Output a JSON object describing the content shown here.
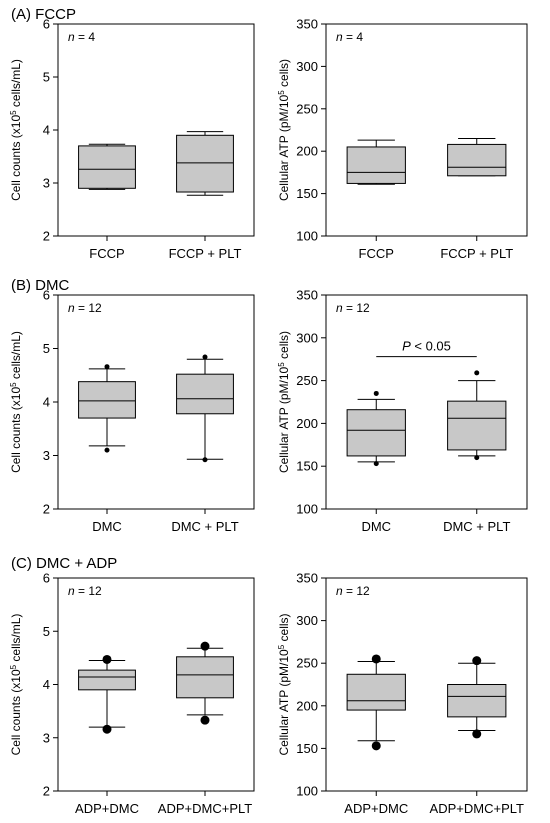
{
  "colors": {
    "box_fill": "#c8c8c8",
    "axis": "#000000",
    "text": "#000000",
    "background": "#ffffff"
  },
  "panel_titles": [
    "(A) FCCP",
    "(B) DMC",
    "(C) DMC + ADP"
  ],
  "chart_data": [
    {
      "type": "box",
      "panel": "A",
      "ylabel": "Cell counts (x10^5 cells/mL)",
      "ylabel_base": "Cell counts (x10",
      "ylabel_sup": "5",
      "ylabel_tail": " cells/mL)",
      "ylim": [
        2,
        6
      ],
      "yticks": [
        "2",
        "3",
        "4",
        "5",
        "6"
      ],
      "n_italic": "n",
      "n_text": " = 4",
      "categories": [
        "FCCP",
        "FCCP + PLT"
      ],
      "boxes": [
        {
          "min": 2.88,
          "q1": 2.9,
          "median": 3.26,
          "q3": 3.7,
          "max": 3.73
        },
        {
          "min": 2.77,
          "q1": 2.83,
          "median": 3.38,
          "q3": 3.9,
          "max": 3.97
        }
      ]
    },
    {
      "type": "box",
      "panel": "A",
      "ylabel": "Cellular ATP (pM/10^5 cells)",
      "ylabel_base": "Cellular ATP (pM/10",
      "ylabel_sup": "5",
      "ylabel_tail": " cells)",
      "ylim": [
        100,
        350
      ],
      "yticks": [
        "100",
        "150",
        "200",
        "250",
        "300",
        "350"
      ],
      "n_italic": "n",
      "n_text": " = 4",
      "categories": [
        "FCCP",
        "FCCP + PLT"
      ],
      "boxes": [
        {
          "min": 161,
          "q1": 162,
          "median": 175,
          "q3": 205,
          "max": 213
        },
        {
          "min": 171,
          "q1": 171,
          "median": 181,
          "q3": 208,
          "max": 215
        }
      ]
    },
    {
      "type": "box",
      "panel": "B",
      "ylabel": "Cell counts (x10^5 cells/mL)",
      "ylabel_base": "Cell counts (x10",
      "ylabel_sup": "5",
      "ylabel_tail": " cells/mL)",
      "ylim": [
        2,
        6
      ],
      "yticks": [
        "2",
        "3",
        "4",
        "5",
        "6"
      ],
      "n_italic": "n",
      "n_text": " = 12",
      "categories": [
        "DMC",
        "DMC + PLT"
      ],
      "boxes": [
        {
          "min": 3.18,
          "q1": 3.7,
          "median": 4.02,
          "q3": 4.38,
          "max": 4.62,
          "outliers": [
            4.66,
            3.1
          ],
          "outlier_size": 2.5
        },
        {
          "min": 2.93,
          "q1": 3.78,
          "median": 4.06,
          "q3": 4.52,
          "max": 4.8,
          "outliers": [
            4.84,
            2.92
          ],
          "outlier_size": 2.5
        }
      ]
    },
    {
      "type": "box",
      "panel": "B",
      "ylabel": "Cellular ATP (pM/10^5 cells)",
      "ylabel_base": "Cellular ATP (pM/10",
      "ylabel_sup": "5",
      "ylabel_tail": " cells)",
      "ylim": [
        100,
        350
      ],
      "yticks": [
        "100",
        "150",
        "200",
        "250",
        "300",
        "350"
      ],
      "n_italic": "n",
      "n_text": " = 12",
      "categories": [
        "DMC",
        "DMC + PLT"
      ],
      "boxes": [
        {
          "min": 155,
          "q1": 162,
          "median": 192,
          "q3": 216,
          "max": 228,
          "outliers": [
            235,
            153
          ],
          "outlier_size": 2.5
        },
        {
          "min": 162,
          "q1": 169,
          "median": 206,
          "q3": 226,
          "max": 250,
          "outliers": [
            259,
            160
          ],
          "outlier_size": 2.5
        }
      ],
      "significance": {
        "from": 0,
        "to": 1,
        "y": 278,
        "italic": "P",
        "text": " < 0.05"
      }
    },
    {
      "type": "box",
      "panel": "C",
      "ylabel": "Cell counts (x10^5 cells/mL)",
      "ylabel_base": "Cell counts (x10",
      "ylabel_sup": "5",
      "ylabel_tail": " cells/mL)",
      "ylim": [
        2,
        6
      ],
      "yticks": [
        "2",
        "3",
        "4",
        "5",
        "6"
      ],
      "n_italic": "n",
      "n_text": " = 12",
      "categories": [
        "ADP+DMC",
        "ADP+DMC+PLT"
      ],
      "boxes": [
        {
          "min": 3.2,
          "q1": 3.9,
          "median": 4.14,
          "q3": 4.27,
          "max": 4.45,
          "outliers": [
            4.47,
            3.16
          ],
          "outlier_size": 4.5
        },
        {
          "min": 3.43,
          "q1": 3.75,
          "median": 4.18,
          "q3": 4.52,
          "max": 4.68,
          "outliers": [
            4.72,
            3.33
          ],
          "outlier_size": 4.5
        }
      ]
    },
    {
      "type": "box",
      "panel": "C",
      "ylabel": "Cellular ATP (pM/10^5 cells)",
      "ylabel_base": "Cellular ATP (pM/10",
      "ylabel_sup": "5",
      "ylabel_tail": " cells)",
      "ylim": [
        100,
        350
      ],
      "yticks": [
        "100",
        "150",
        "200",
        "250",
        "300",
        "350"
      ],
      "n_italic": "n",
      "n_text": " = 12",
      "categories": [
        "ADP+DMC",
        "ADP+DMC+PLT"
      ],
      "boxes": [
        {
          "min": 159,
          "q1": 195,
          "median": 206,
          "q3": 237,
          "max": 252,
          "outliers": [
            255,
            153
          ],
          "outlier_size": 4.5
        },
        {
          "min": 171,
          "q1": 187,
          "median": 211,
          "q3": 225,
          "max": 250,
          "outliers": [
            253,
            167
          ],
          "outlier_size": 4.5
        }
      ]
    }
  ]
}
